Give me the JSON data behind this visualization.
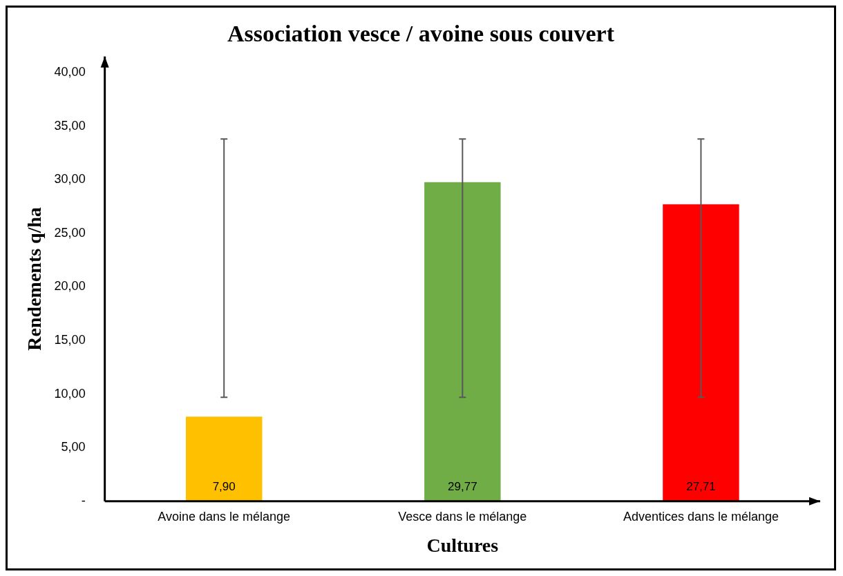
{
  "chart_data": {
    "type": "bar",
    "title": "Association vesce / avoine sous couvert",
    "xlabel": "Cultures",
    "ylabel": "Rendements q/ha",
    "categories": [
      "Avoine dans le mélange",
      "Vesce dans le mélange",
      "Adventices dans le mélange"
    ],
    "values": [
      7.9,
      29.77,
      27.71
    ],
    "colors": [
      "#ffc000",
      "#70ad47",
      "#ff0000"
    ],
    "errors": [
      [
        9.7,
        33.8
      ],
      [
        9.7,
        33.8
      ],
      [
        9.7,
        33.8
      ]
    ],
    "value_labels": [
      "7,90",
      "29,77",
      "27,71"
    ],
    "ylim": [
      0,
      41.5
    ],
    "yticks": [
      {
        "value": 0,
        "label": "-"
      },
      {
        "value": 5,
        "label": "5,00"
      },
      {
        "value": 10,
        "label": "10,00"
      },
      {
        "value": 15,
        "label": "15,00"
      },
      {
        "value": 20,
        "label": "20,00"
      },
      {
        "value": 25,
        "label": "25,00"
      },
      {
        "value": 30,
        "label": "30,00"
      },
      {
        "value": 35,
        "label": "35,00"
      },
      {
        "value": 40,
        "label": "40,00"
      }
    ],
    "grid": false,
    "legend": false
  }
}
